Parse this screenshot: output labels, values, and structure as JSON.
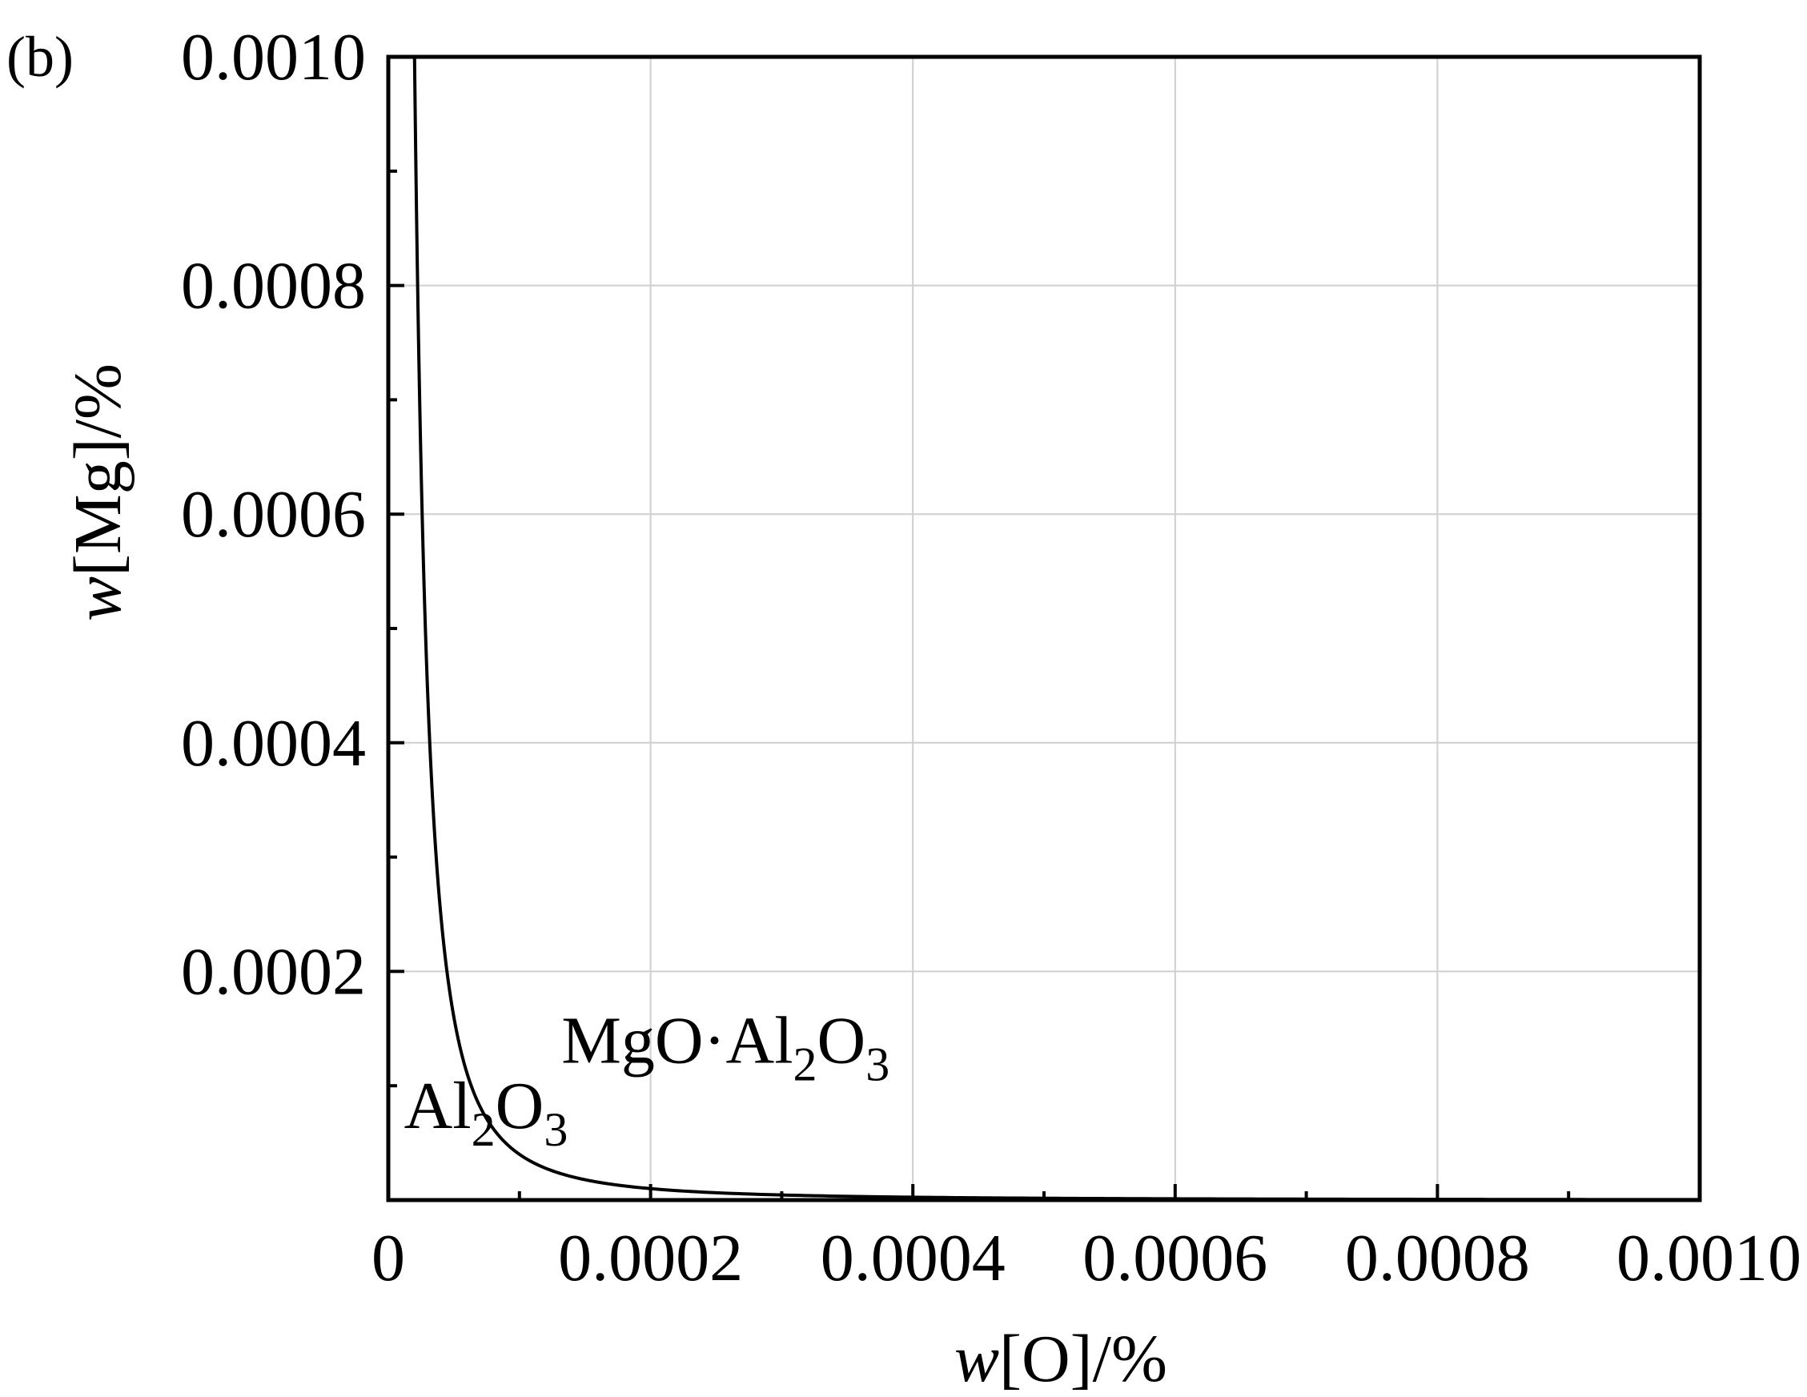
{
  "panel_label": "(b)",
  "chart_data": {
    "type": "line",
    "xlabel": {
      "italic": "w",
      "rest": "[O]/%"
    },
    "ylabel": {
      "italic": "w",
      "rest": "[Mg]/%"
    },
    "xlim": [
      0,
      0.001
    ],
    "ylim": [
      0,
      0.001
    ],
    "x_ticks": [
      0,
      0.0002,
      0.0004,
      0.0006,
      0.0008,
      0.001
    ],
    "x_tick_labels": [
      "0",
      "0.0002",
      "0.0004",
      "0.0006",
      "0.0008",
      "0.0010"
    ],
    "y_ticks": [
      0.0002,
      0.0004,
      0.0006,
      0.0008,
      0.001
    ],
    "y_tick_labels": [
      "0.0002",
      "0.0004",
      "0.0006",
      "0.0008",
      "0.0010"
    ],
    "grid": true,
    "series": [
      {
        "color": "#000000",
        "x": [
          2e-05,
          2.5e-05,
          3e-05,
          4e-05,
          5e-05,
          6e-05,
          8e-05,
          0.0001,
          0.00012,
          0.00015,
          0.0002,
          0.0003,
          0.0004,
          0.0005,
          0.0006,
          0.0007,
          0.0008,
          0.0009,
          0.001
        ],
        "y": [
          0.001,
          0.00064,
          0.000444,
          0.00025,
          0.00016,
          0.000111,
          6.25e-05,
          4e-05,
          2.78e-05,
          1.78e-05,
          1e-05,
          4.44e-06,
          2.5e-06,
          1.6e-06,
          1.11e-06,
          8.2e-07,
          6.25e-07,
          4.94e-07,
          4e-07
        ]
      }
    ],
    "annotations": [
      {
        "main": "MgO·Al",
        "sub1": "2",
        "mid": "O",
        "sub2": "3",
        "x": 0.000132,
        "y": 0.00012
      },
      {
        "main": "Al",
        "sub1": "2",
        "mid": "O",
        "sub2": "3",
        "x": 1.2e-05,
        "y": 6.3e-05
      }
    ]
  }
}
